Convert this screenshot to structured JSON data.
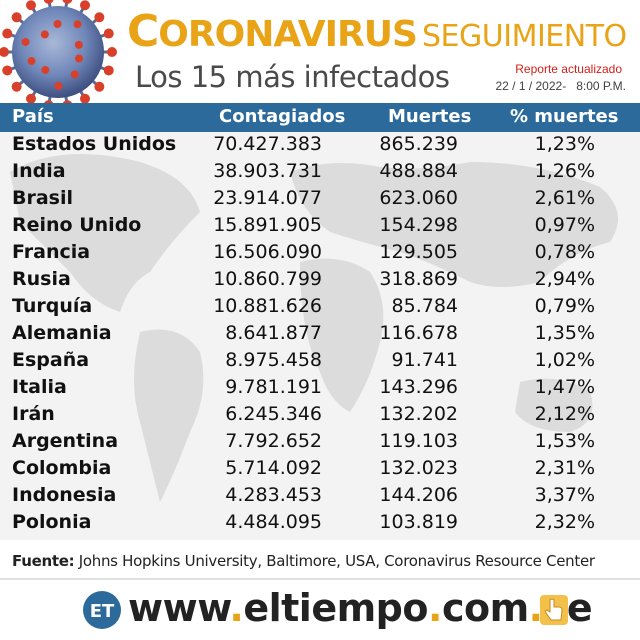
{
  "header": {
    "title_initial": "C",
    "title_rest": "ORONAVIRUS",
    "title_second": "SEGUIMIENTO",
    "subtitle": "Los 15 más infectados",
    "report_label": "Reporte actualizado",
    "report_date": "22 / 1 / 2022-",
    "report_time": "8:00 P.M.",
    "accent_color": "#e8a317",
    "header_bar_color": "#2b6a9a"
  },
  "chart_data": {
    "type": "table",
    "columns": [
      "País",
      "Contagiados",
      "Muertes",
      "% muertes"
    ],
    "rows": [
      {
        "country": "Estados Unidos",
        "cases": "70.427.383",
        "deaths": "865.239",
        "pct": "1,23%"
      },
      {
        "country": "India",
        "cases": "38.903.731",
        "deaths": "488.884",
        "pct": "1,26%"
      },
      {
        "country": "Brasil",
        "cases": "23.914.077",
        "deaths": "623.060",
        "pct": "2,61%"
      },
      {
        "country": "Reino Unido",
        "cases": "15.891.905",
        "deaths": "154.298",
        "pct": "0,97%"
      },
      {
        "country": "Francia",
        "cases": "16.506.090",
        "deaths": "129.505",
        "pct": "0,78%"
      },
      {
        "country": "Rusia",
        "cases": "10.860.799",
        "deaths": "318.869",
        "pct": "2,94%"
      },
      {
        "country": "Turquía",
        "cases": "10.881.626",
        "deaths": "85.784",
        "pct": "0,79%"
      },
      {
        "country": "Alemania",
        "cases": "8.641.877",
        "deaths": "116.678",
        "pct": "1,35%"
      },
      {
        "country": "España",
        "cases": "8.975.458",
        "deaths": "91.741",
        "pct": "1,02%"
      },
      {
        "country": "Italia",
        "cases": "9.781.191",
        "deaths": "143.296",
        "pct": "1,47%"
      },
      {
        "country": "Irán",
        "cases": "6.245.346",
        "deaths": "132.202",
        "pct": "2,12%"
      },
      {
        "country": "Argentina",
        "cases": "7.792.652",
        "deaths": "119.103",
        "pct": "1,53%"
      },
      {
        "country": "Colombia",
        "cases": "5.714.092",
        "deaths": "132.023",
        "pct": "2,31%"
      },
      {
        "country": "Indonesia",
        "cases": "4.283.453",
        "deaths": "144.206",
        "pct": "3,37%"
      },
      {
        "country": "Polonia",
        "cases": "4.484.095",
        "deaths": "103.819",
        "pct": "2,32%"
      }
    ]
  },
  "source": {
    "label": "Fuente:",
    "text": "Johns Hopkins University, Baltimore, USA, Coronavirus Resource Center"
  },
  "footer": {
    "logo_text": "ET",
    "site_www": "www",
    "site_name": "eltiempo",
    "site_com": "com",
    "site_ve": "ve"
  }
}
